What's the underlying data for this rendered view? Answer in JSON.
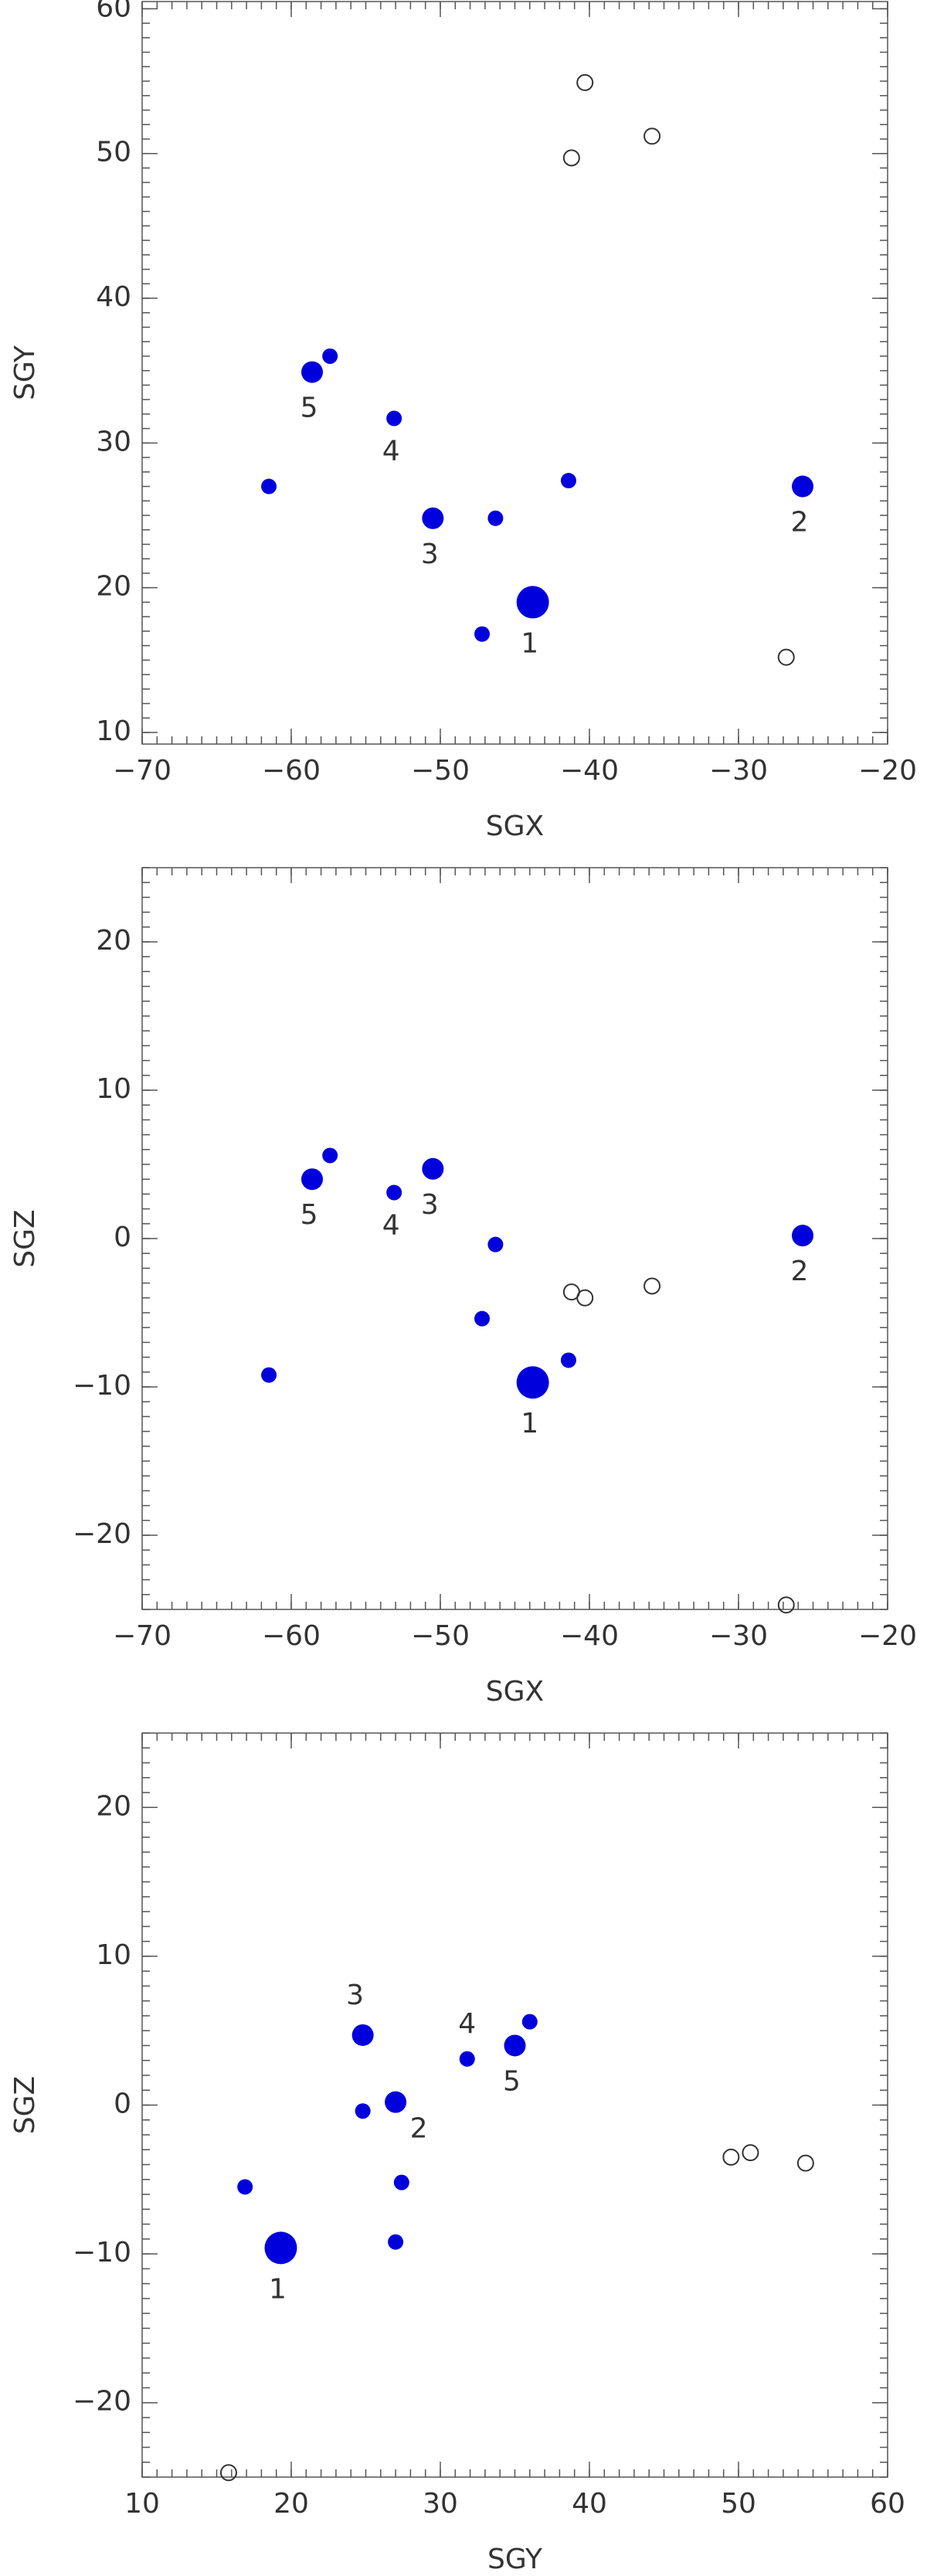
{
  "chart_data": [
    {
      "type": "scatter",
      "xlabel": "SGX",
      "ylabel": "SGY",
      "xlim": [
        -70,
        -20
      ],
      "ylim": [
        9.2,
        60.5
      ],
      "xticks": [
        {
          "value": -70,
          "label": "−70"
        },
        {
          "value": -60,
          "label": "−60"
        },
        {
          "value": -50,
          "label": "−50"
        },
        {
          "value": -40,
          "label": "−40"
        },
        {
          "value": -30,
          "label": "−30"
        },
        {
          "value": -20,
          "label": "−20"
        }
      ],
      "yticks": [
        10,
        20,
        30,
        40,
        50,
        60
      ],
      "series": [
        {
          "color": "#0000dd",
          "x": [
            -43.8
          ],
          "values": [
            19.0
          ],
          "labels": [
            "1"
          ]
        },
        {
          "color": "#0000dd",
          "x": [
            -25.7,
            -50.5,
            -58.6
          ],
          "values": [
            27.0,
            24.8,
            34.9
          ],
          "labels": [
            "2",
            "3",
            "5"
          ]
        },
        {
          "color": "#0000dd",
          "x": [
            -53.1,
            -57.4,
            -61.5,
            -46.3,
            -41.4,
            -47.2
          ],
          "values": [
            31.7,
            36.0,
            27.0,
            24.8,
            27.4,
            16.8
          ],
          "labels": [
            "4",
            null,
            null,
            null,
            null,
            null
          ]
        },
        {
          "color": "#333333",
          "open": true,
          "x": [
            -40.3,
            -41.2,
            -35.8,
            -26.8
          ],
          "values": [
            54.9,
            49.7,
            51.2,
            15.2
          ]
        }
      ]
    },
    {
      "type": "scatter",
      "xlabel": "SGX",
      "ylabel": "SGZ",
      "xlim": [
        -70,
        -20
      ],
      "ylim": [
        -25,
        25
      ],
      "xticks": [
        {
          "value": -70,
          "label": "−70"
        },
        {
          "value": -60,
          "label": "−60"
        },
        {
          "value": -50,
          "label": "−50"
        },
        {
          "value": -40,
          "label": "−40"
        },
        {
          "value": -30,
          "label": "−30"
        },
        {
          "value": -20,
          "label": "−20"
        }
      ],
      "yticks": [
        {
          "value": -20,
          "label": "−20"
        },
        {
          "value": -10,
          "label": "−10"
        },
        0,
        10,
        20
      ],
      "series": [
        {
          "color": "#0000dd",
          "x": [
            -43.8
          ],
          "values": [
            -9.7
          ],
          "labels": [
            "1"
          ]
        },
        {
          "color": "#0000dd",
          "x": [
            -25.7,
            -50.5,
            -58.6
          ],
          "values": [
            0.2,
            4.7,
            4.0
          ],
          "labels": [
            "2",
            "3",
            "5"
          ]
        },
        {
          "color": "#0000dd",
          "x": [
            -53.1,
            -57.4,
            -61.5,
            -46.3,
            -41.4,
            -47.2
          ],
          "values": [
            3.1,
            5.6,
            -9.2,
            -0.4,
            -8.2,
            -5.4
          ],
          "labels": [
            "4",
            null,
            null,
            null,
            null,
            null
          ]
        },
        {
          "color": "#333333",
          "open": true,
          "x": [
            -40.3,
            -41.2,
            -35.8,
            -26.8
          ],
          "values": [
            -4.0,
            -3.6,
            -3.2,
            -24.7
          ]
        }
      ]
    },
    {
      "type": "scatter",
      "xlabel": "SGY",
      "ylabel": "SGZ",
      "xlim": [
        10,
        60
      ],
      "ylim": [
        -25,
        25
      ],
      "xticks": [
        10,
        20,
        30,
        40,
        50,
        60
      ],
      "yticks": [
        {
          "value": -20,
          "label": "−20"
        },
        {
          "value": -10,
          "label": "−10"
        },
        0,
        10,
        20
      ],
      "series": [
        {
          "color": "#0000dd",
          "x": [
            19.3
          ],
          "values": [
            -9.6
          ],
          "labels": [
            "1"
          ]
        },
        {
          "color": "#0000dd",
          "x": [
            27.0,
            24.8,
            35.0
          ],
          "values": [
            0.2,
            4.7,
            4.0
          ],
          "labels": [
            "2",
            "3",
            "5"
          ]
        },
        {
          "color": "#0000dd",
          "x": [
            31.8,
            36.0,
            27.0,
            24.8,
            27.4,
            16.9
          ],
          "values": [
            3.1,
            5.6,
            -9.2,
            -0.4,
            -5.2,
            -5.5
          ],
          "labels": [
            "4",
            null,
            null,
            null,
            null,
            null
          ]
        },
        {
          "color": "#333333",
          "open": true,
          "x": [
            49.5,
            50.8,
            54.5,
            15.8
          ],
          "values": [
            -3.5,
            -3.2,
            -3.9,
            -24.7
          ]
        }
      ]
    }
  ]
}
